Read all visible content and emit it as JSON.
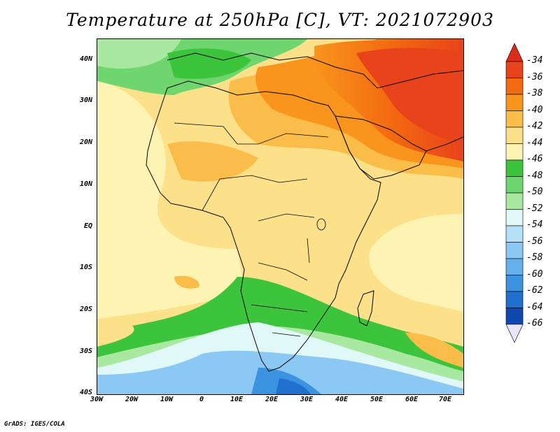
{
  "title": "Temperature at 250hPa [C], VT: 2021072903",
  "credit": "GrADS: IGES/COLA",
  "map": {
    "lat_ticks": [
      "40N",
      "30N",
      "20N",
      "10N",
      "EQ",
      "10S",
      "20S",
      "30S",
      "40S"
    ],
    "lon_ticks": [
      "30W",
      "20W",
      "10W",
      "0",
      "10E",
      "20E",
      "30E",
      "40E",
      "50E",
      "60E",
      "70E"
    ]
  },
  "colorbar": {
    "labels": [
      "-34",
      "-36",
      "-38",
      "-40",
      "-42",
      "-44",
      "-46",
      "-48",
      "-50",
      "-52",
      "-54",
      "-56",
      "-58",
      "-60",
      "-62",
      "-64",
      "-66"
    ],
    "colors": [
      "#e8431a",
      "#f36b11",
      "#f9951c",
      "#fbbd4a",
      "#fde08a",
      "#fdf4b4",
      "#3cc43c",
      "#6fd66f",
      "#a8e8a0",
      "#e0f8f8",
      "#b4e0f8",
      "#8cc8f4",
      "#64b0ec",
      "#3c94e0",
      "#2070d0",
      "#1048b0",
      "#0c1e7c"
    ],
    "over_color": "#dc2b18",
    "under_color": "#e8e6f8"
  }
}
